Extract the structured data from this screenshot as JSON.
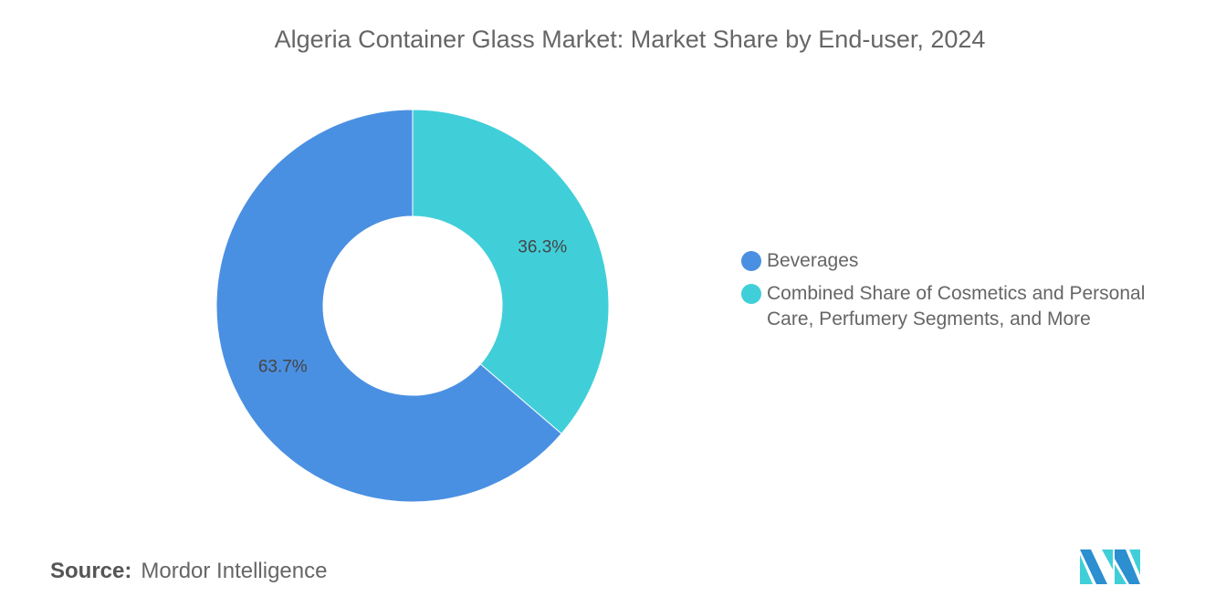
{
  "chart_data": {
    "type": "pie",
    "variant": "donut",
    "title": "Algeria Container Glass Market: Market Share by End-user, 2024",
    "categories": [
      "Combined Share of Cosmetics and Personal Care, Perfumery Segments, and More",
      "Beverages"
    ],
    "values": [
      36.3,
      63.7
    ],
    "data_labels": [
      "36.3%",
      "63.7%"
    ],
    "colors": [
      "#40CFD9",
      "#4A90E2"
    ],
    "legend": [
      "Beverages",
      "Combined Share of Cosmetics and Personal Care, Perfumery Segments, and More"
    ],
    "legend_colors": [
      "#4A90E2",
      "#40CFD9"
    ],
    "legend_position": "right"
  },
  "footer": {
    "source_label": "Source:",
    "source_value": "Mordor Intelligence"
  },
  "logo": {
    "name": "mordor-intelligence-logo",
    "colors": [
      "#2B8FD0",
      "#40CFD9"
    ]
  }
}
